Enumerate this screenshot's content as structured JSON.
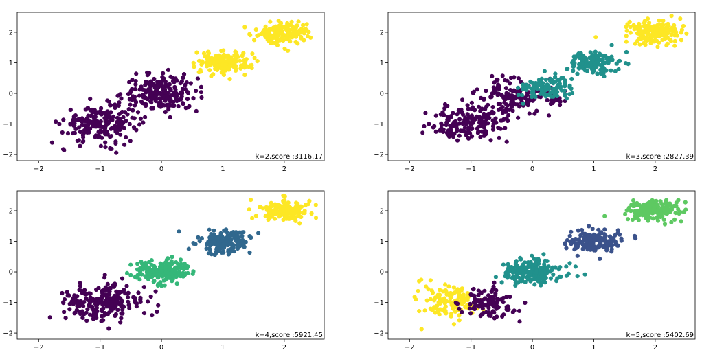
{
  "chart_data": [
    {
      "type": "scatter",
      "k": 2,
      "score_text": "k=2,score :3116.17",
      "xlim": [
        -2.35,
        2.65
      ],
      "ylim": [
        -2.2,
        2.65
      ],
      "xticks": [
        -2,
        -1,
        0,
        1,
        2
      ],
      "yticks": [
        -2,
        -1,
        0,
        1,
        2
      ],
      "grid": false,
      "clusters": [
        {
          "color": "#440154",
          "sigma": [
            0.3,
            0.3
          ],
          "n": 420,
          "blobs": [
            [
              -1.0,
              -1.0
            ],
            [
              0.0,
              0.0
            ]
          ]
        },
        {
          "color": "#fde725",
          "sigma": [
            0.22,
            0.18
          ],
          "n": 340,
          "blobs": [
            [
              1.0,
              1.0
            ],
            [
              2.0,
              2.0
            ]
          ]
        }
      ]
    },
    {
      "type": "scatter",
      "k": 3,
      "score_text": "k=3,score :2827.39",
      "xlim": [
        -2.35,
        2.65
      ],
      "ylim": [
        -2.2,
        2.65
      ],
      "xticks": [
        -2,
        -1,
        0,
        1,
        2
      ],
      "yticks": [
        -2,
        -1,
        0,
        1,
        2
      ],
      "grid": false,
      "clusters": [
        {
          "color": "#440154",
          "sigma": [
            0.32,
            0.3
          ],
          "n": 330,
          "blobs": [
            [
              -1.0,
              -1.0
            ],
            [
              -0.25,
              -0.1
            ]
          ]
        },
        {
          "color": "#21918c",
          "sigma": [
            0.22,
            0.18
          ],
          "n": 250,
          "blobs": [
            [
              0.2,
              0.15
            ],
            [
              1.0,
              1.0
            ]
          ]
        },
        {
          "color": "#fde725",
          "sigma": [
            0.22,
            0.18
          ],
          "n": 170,
          "blobs": [
            [
              2.0,
              2.0
            ]
          ]
        }
      ]
    },
    {
      "type": "scatter",
      "k": 4,
      "score_text": "k=4,score :5921.45",
      "xlim": [
        -2.35,
        2.65
      ],
      "ylim": [
        -2.2,
        2.65
      ],
      "xticks": [
        -2,
        -1,
        0,
        1,
        2
      ],
      "yticks": [
        -2,
        -1,
        0,
        1,
        2
      ],
      "grid": false,
      "clusters": [
        {
          "color": "#440154",
          "sigma": [
            0.32,
            0.3
          ],
          "n": 220,
          "blobs": [
            [
              -1.0,
              -1.0
            ]
          ]
        },
        {
          "color": "#35b779",
          "sigma": [
            0.24,
            0.2
          ],
          "n": 200,
          "blobs": [
            [
              0.0,
              0.0
            ]
          ]
        },
        {
          "color": "#31688e",
          "sigma": [
            0.22,
            0.18
          ],
          "n": 170,
          "blobs": [
            [
              1.0,
              1.0
            ]
          ]
        },
        {
          "color": "#fde725",
          "sigma": [
            0.22,
            0.18
          ],
          "n": 170,
          "blobs": [
            [
              2.0,
              2.0
            ]
          ]
        }
      ]
    },
    {
      "type": "scatter",
      "k": 5,
      "score_text": "k=5,score :5402.69",
      "xlim": [
        -2.35,
        2.65
      ],
      "ylim": [
        -2.2,
        2.65
      ],
      "xticks": [
        -2,
        -1,
        0,
        1,
        2
      ],
      "yticks": [
        -2,
        -1,
        0,
        1,
        2
      ],
      "grid": false,
      "clusters": [
        {
          "color": "#fde725",
          "sigma": [
            0.25,
            0.28
          ],
          "n": 130,
          "blobs": [
            [
              -1.35,
              -1.0
            ]
          ]
        },
        {
          "color": "#440154",
          "sigma": [
            0.2,
            0.26
          ],
          "n": 110,
          "blobs": [
            [
              -0.7,
              -1.0
            ]
          ]
        },
        {
          "color": "#21918c",
          "sigma": [
            0.24,
            0.2
          ],
          "n": 200,
          "blobs": [
            [
              0.0,
              0.0
            ]
          ]
        },
        {
          "color": "#3b528b",
          "sigma": [
            0.22,
            0.18
          ],
          "n": 170,
          "blobs": [
            [
              1.0,
              1.0
            ]
          ]
        },
        {
          "color": "#5ec962",
          "sigma": [
            0.22,
            0.18
          ],
          "n": 170,
          "blobs": [
            [
              2.0,
              2.0
            ]
          ]
        }
      ]
    }
  ]
}
